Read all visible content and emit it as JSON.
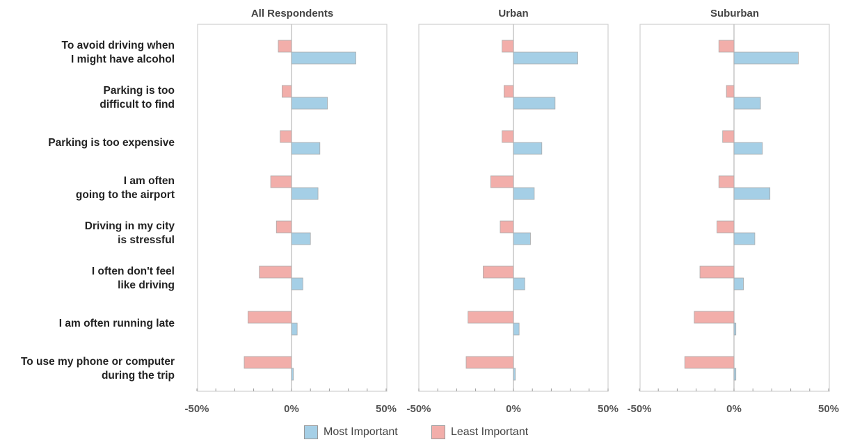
{
  "chart_data": {
    "type": "bar",
    "orientation": "horizontal",
    "categories": [
      [
        "To avoid driving when",
        "I might have alcohol"
      ],
      [
        "Parking is too",
        "difficult to find"
      ],
      [
        "Parking is too expensive"
      ],
      [
        "I am often",
        "going to the airport"
      ],
      [
        "Driving in my city",
        "is stressful"
      ],
      [
        "I often don't feel",
        "like driving"
      ],
      [
        "I am often running late"
      ],
      [
        "To use my phone or computer",
        "during the trip"
      ]
    ],
    "xlim": [
      -50,
      50
    ],
    "x_ticks": [
      "-50%",
      "0%",
      "50%"
    ],
    "grid": false,
    "legend_position": "bottom",
    "panels": [
      {
        "title": "All Respondents",
        "series": [
          {
            "name": "Most Important",
            "values": [
              34,
              19,
              15,
              14,
              10,
              6,
              3,
              1
            ]
          },
          {
            "name": "Least Important",
            "values": [
              -7,
              -5,
              -6,
              -11,
              -8,
              -17,
              -23,
              -25
            ]
          }
        ]
      },
      {
        "title": "Urban",
        "series": [
          {
            "name": "Most Important",
            "values": [
              34,
              22,
              15,
              11,
              9,
              6,
              3,
              1
            ]
          },
          {
            "name": "Least Important",
            "values": [
              -6,
              -5,
              -6,
              -12,
              -7,
              -16,
              -24,
              -25
            ]
          }
        ]
      },
      {
        "title": "Suburban",
        "series": [
          {
            "name": "Most Important",
            "values": [
              34,
              14,
              15,
              19,
              11,
              5,
              1,
              1
            ]
          },
          {
            "name": "Least Important",
            "values": [
              -8,
              -4,
              -6,
              -8,
              -9,
              -18,
              -21,
              -26
            ]
          }
        ]
      }
    ],
    "colors": {
      "Most Important": "#a5cfe6",
      "Least Important": "#f2aeaa"
    }
  },
  "legend": {
    "most_label": "Most Important",
    "least_label": "Least Important"
  }
}
